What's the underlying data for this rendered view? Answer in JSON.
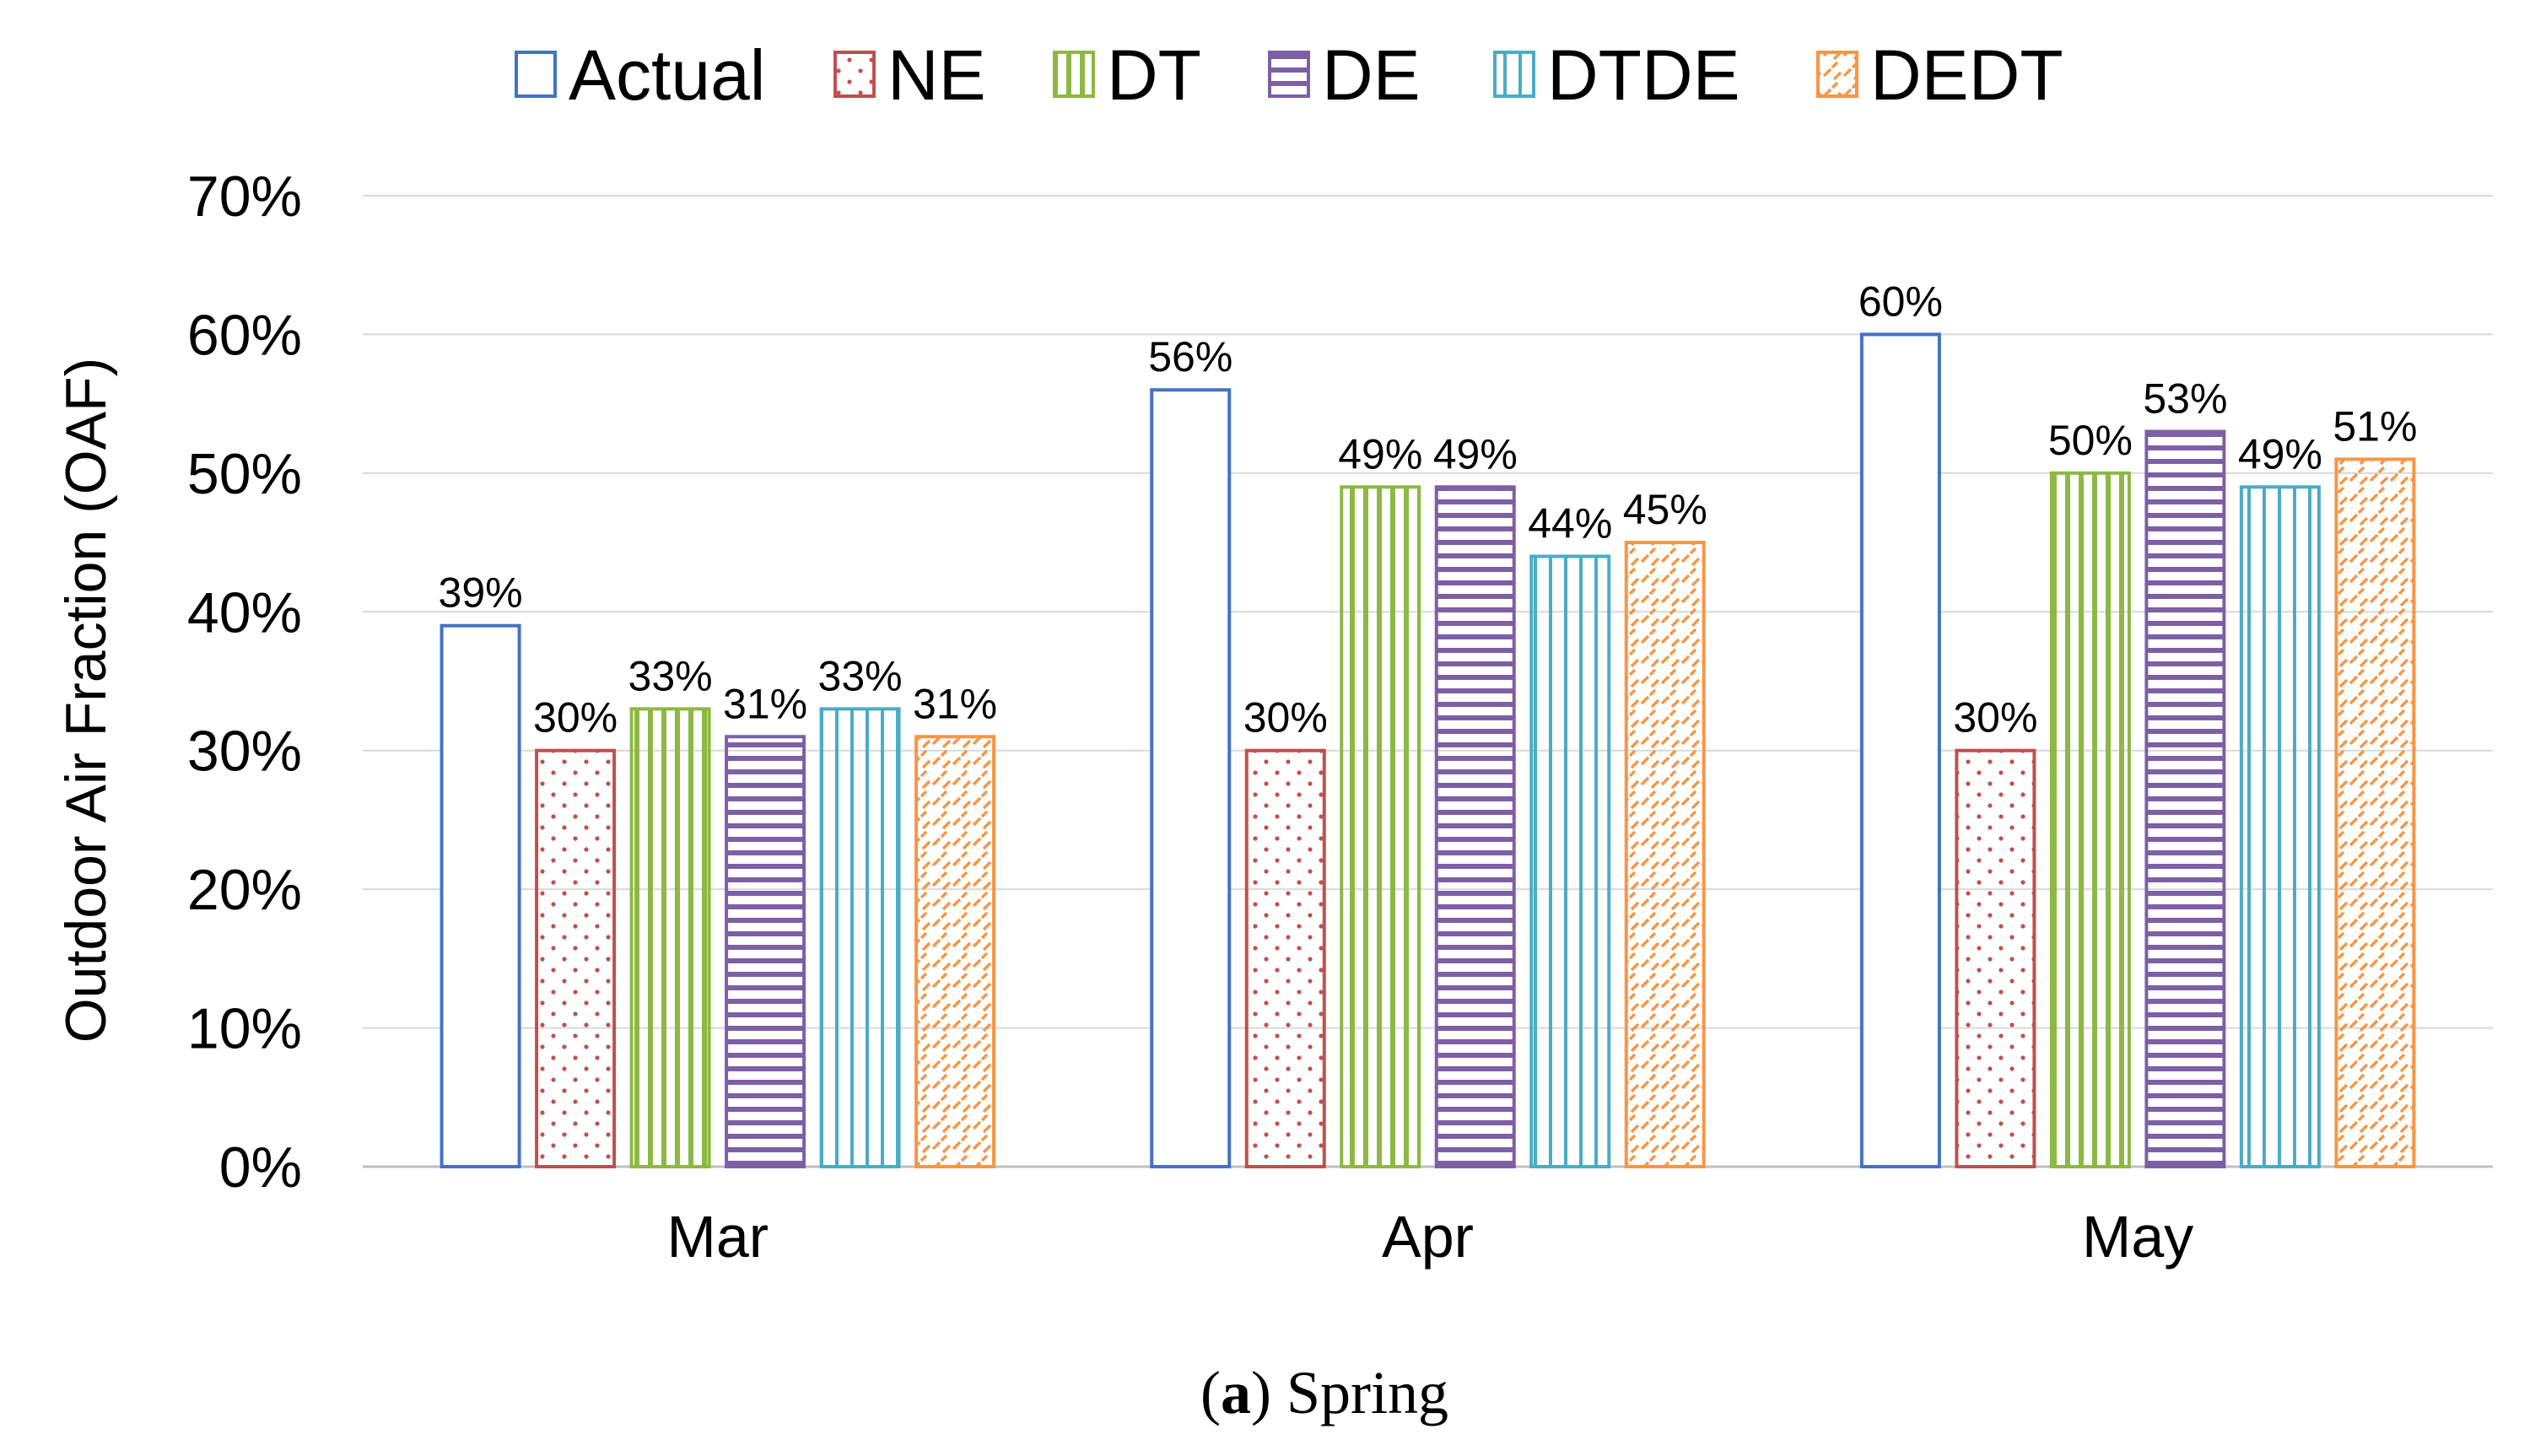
{
  "chart_data": {
    "type": "bar",
    "title": "",
    "xlabel": "",
    "ylabel": "Outdoor Air Fraction (OAF)",
    "ylim": [
      0,
      70
    ],
    "y_ticks": [
      "0%",
      "10%",
      "20%",
      "30%",
      "40%",
      "50%",
      "60%",
      "70%"
    ],
    "grid": true,
    "legend_position": "top",
    "categories": [
      "Mar",
      "Apr",
      "May"
    ],
    "series": [
      {
        "name": "Actual",
        "color": "#4472C4",
        "pattern": "none",
        "values": [
          39,
          56,
          60
        ],
        "labels": [
          "39%",
          "56%",
          "60%"
        ]
      },
      {
        "name": "NE",
        "color": "#C0504D",
        "pattern": "dots",
        "values": [
          30,
          30,
          30
        ],
        "labels": [
          "30%",
          "30%",
          "30%"
        ]
      },
      {
        "name": "DT",
        "color": "#8DB843",
        "pattern": "vertical",
        "values": [
          33,
          49,
          50
        ],
        "labels": [
          "33%",
          "49%",
          "50%"
        ]
      },
      {
        "name": "DE",
        "color": "#7E5FA6",
        "pattern": "horizontal",
        "values": [
          31,
          49,
          53
        ],
        "labels": [
          "31%",
          "49%",
          "53%"
        ]
      },
      {
        "name": "DTDE",
        "color": "#4BACC6",
        "pattern": "vertical-fine",
        "values": [
          33,
          44,
          49
        ],
        "labels": [
          "33%",
          "44%",
          "49%"
        ]
      },
      {
        "name": "DEDT",
        "color": "#F79646",
        "pattern": "diagonal",
        "values": [
          31,
          45,
          51
        ],
        "labels": [
          "31%",
          "45%",
          "51%"
        ]
      }
    ]
  },
  "caption": {
    "letter": "a",
    "text": "Spring"
  }
}
